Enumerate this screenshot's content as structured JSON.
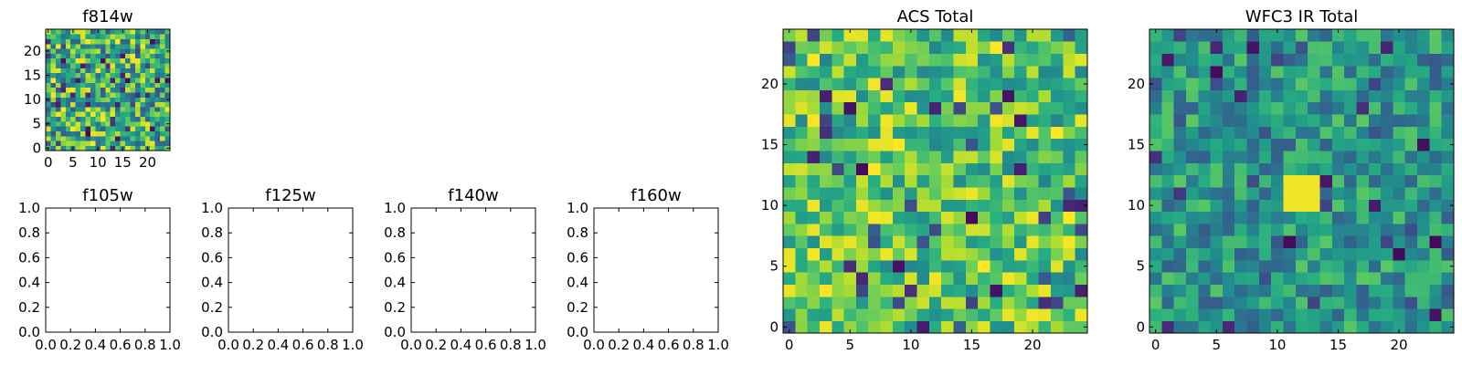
{
  "chart_data": [
    {
      "type": "heatmap",
      "title": "f814w",
      "grid_size": 25,
      "xticks": [
        "0",
        "5",
        "10",
        "15",
        "20"
      ],
      "yticks": [
        "0",
        "5",
        "10",
        "15",
        "20"
      ],
      "colormap": "viridis",
      "pattern_seed": 814,
      "value_range": [
        0.3,
        1.0
      ]
    },
    {
      "type": "empty",
      "title": "f105w",
      "xticks": [
        "0.0",
        "0.2",
        "0.4",
        "0.6",
        "0.8",
        "1.0"
      ],
      "yticks": [
        "0.0",
        "0.2",
        "0.4",
        "0.6",
        "0.8",
        "1.0"
      ]
    },
    {
      "type": "empty",
      "title": "f125w",
      "xticks": [
        "0.0",
        "0.2",
        "0.4",
        "0.6",
        "0.8",
        "1.0"
      ],
      "yticks": [
        "0.0",
        "0.2",
        "0.4",
        "0.6",
        "0.8",
        "1.0"
      ]
    },
    {
      "type": "empty",
      "title": "f140w",
      "xticks": [
        "0.0",
        "0.2",
        "0.4",
        "0.6",
        "0.8",
        "1.0"
      ],
      "yticks": [
        "0.0",
        "0.2",
        "0.4",
        "0.6",
        "0.8",
        "1.0"
      ]
    },
    {
      "type": "empty",
      "title": "f160w",
      "xticks": [
        "0.0",
        "0.2",
        "0.4",
        "0.6",
        "0.8",
        "1.0"
      ],
      "yticks": [
        "0.0",
        "0.2",
        "0.4",
        "0.6",
        "0.8",
        "1.0"
      ]
    },
    {
      "type": "heatmap",
      "title": "ACS Total",
      "grid_size": 25,
      "xticks": [
        "0",
        "5",
        "10",
        "15",
        "20"
      ],
      "yticks": [
        "0",
        "5",
        "10",
        "15",
        "20"
      ],
      "colormap": "viridis",
      "pattern_seed": 4242,
      "value_range": [
        0.45,
        1.0
      ]
    },
    {
      "type": "heatmap",
      "title": "WFC3 IR Total",
      "grid_size": 25,
      "xticks": [
        "0",
        "5",
        "10",
        "15",
        "20"
      ],
      "yticks": [
        "0",
        "5",
        "10",
        "15",
        "20"
      ],
      "colormap": "viridis",
      "pattern_seed": 1603,
      "value_range": [
        0.3,
        0.75
      ],
      "bright_block": {
        "x": [
          11,
          13
        ],
        "y": [
          10,
          12
        ]
      }
    }
  ]
}
